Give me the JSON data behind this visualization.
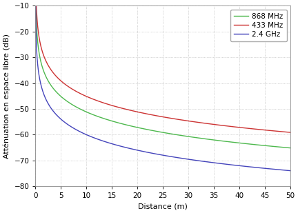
{
  "title": "",
  "xlabel": "Distance (m)",
  "ylabel": "Atténuation en espace libre (dB)",
  "xlim": [
    0,
    50
  ],
  "ylim": [
    -80,
    -10
  ],
  "xticks": [
    0,
    5,
    10,
    15,
    20,
    25,
    30,
    35,
    40,
    45,
    50
  ],
  "yticks": [
    -80,
    -70,
    -60,
    -50,
    -40,
    -30,
    -20,
    -10
  ],
  "frequencies": [
    868000000.0,
    433000000.0,
    2400000000.0
  ],
  "labels": [
    "868 MHz",
    "433 MHz",
    "2.4 GHz"
  ],
  "colors": [
    "#4db84d",
    "#cc3333",
    "#4444bb"
  ],
  "background_color": "#ffffff",
  "grid_color": "#b0b0b0",
  "legend_loc": "upper right",
  "figsize": [
    4.32,
    3.09
  ],
  "dpi": 100,
  "linewidth": 1.0
}
